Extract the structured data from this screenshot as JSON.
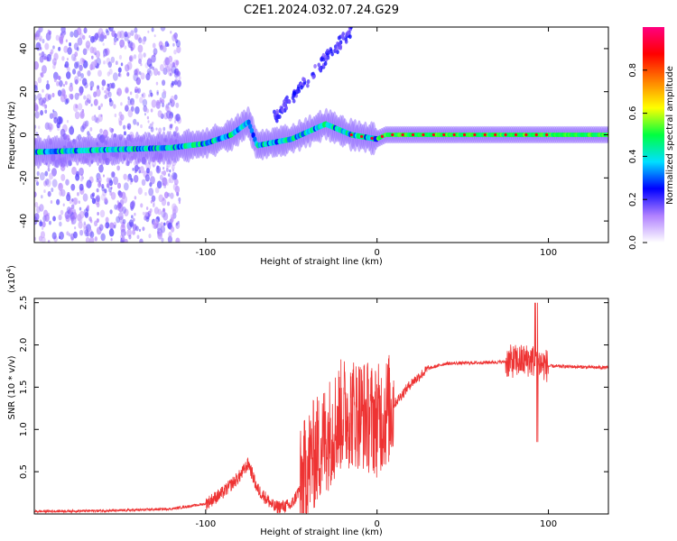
{
  "title": "C2E1.2024.032.07.24.G29",
  "chart_data": [
    {
      "type": "heatmap",
      "xlabel": "Height of straight line (km)",
      "ylabel": "Frequency (Hz)",
      "xlim": [
        -200,
        135
      ],
      "ylim": [
        -50,
        50
      ],
      "xticks": [
        -100,
        0,
        100
      ],
      "yticks": [
        -40,
        -20,
        0,
        20,
        40
      ],
      "colorbar": {
        "label": "Normalized spectral amplitude",
        "range": [
          0,
          1
        ],
        "ticks": [
          0.0,
          0.2,
          0.4,
          0.6,
          0.8
        ],
        "colors": [
          "#ffffff",
          "#b080ff",
          "#0000ff",
          "#00e0ff",
          "#00ff40",
          "#ffff00",
          "#ff8000",
          "#ff0000",
          "#ff0080"
        ]
      },
      "ridge": [
        {
          "x": -200,
          "f": -8
        },
        {
          "x": -160,
          "f": -7
        },
        {
          "x": -120,
          "f": -6
        },
        {
          "x": -100,
          "f": -4
        },
        {
          "x": -85,
          "f": 0
        },
        {
          "x": -75,
          "f": 6
        },
        {
          "x": -70,
          "f": -5
        },
        {
          "x": -50,
          "f": -2
        },
        {
          "x": -30,
          "f": 5
        },
        {
          "x": -15,
          "f": 0
        },
        {
          "x": 0,
          "f": -2
        },
        {
          "x": 5,
          "f": 0
        },
        {
          "x": 135,
          "f": 0
        }
      ]
    },
    {
      "type": "line",
      "xlabel": "Height of straight line (km)",
      "ylabel": "SNR (10 * v/v)",
      "yscale_label": "(x10",
      "yscale_exp": "4",
      "yscale_close": ")",
      "xlim": [
        -200,
        135
      ],
      "ylim": [
        0,
        2.55
      ],
      "xticks": [
        -100,
        0,
        100
      ],
      "yticks": [
        0.5,
        1.0,
        1.5,
        2.0,
        2.5
      ],
      "color": "#ee3333",
      "envelope": [
        {
          "x": -200,
          "y": 0.03
        },
        {
          "x": -150,
          "y": 0.04
        },
        {
          "x": -120,
          "y": 0.06
        },
        {
          "x": -100,
          "y": 0.12
        },
        {
          "x": -90,
          "y": 0.25
        },
        {
          "x": -80,
          "y": 0.45
        },
        {
          "x": -75,
          "y": 0.6
        },
        {
          "x": -70,
          "y": 0.3
        },
        {
          "x": -60,
          "y": 0.08
        },
        {
          "x": -50,
          "y": 0.1
        },
        {
          "x": -45,
          "y": 0.3
        },
        {
          "x": -40,
          "y": 0.6
        },
        {
          "x": -30,
          "y": 0.9
        },
        {
          "x": -20,
          "y": 1.2
        },
        {
          "x": -10,
          "y": 1.2
        },
        {
          "x": 0,
          "y": 1.1
        },
        {
          "x": 10,
          "y": 1.3
        },
        {
          "x": 20,
          "y": 1.55
        },
        {
          "x": 30,
          "y": 1.72
        },
        {
          "x": 40,
          "y": 1.78
        },
        {
          "x": 60,
          "y": 1.79
        },
        {
          "x": 75,
          "y": 1.8
        },
        {
          "x": 90,
          "y": 1.82
        },
        {
          "x": 100,
          "y": 1.75
        },
        {
          "x": 135,
          "y": 1.73
        }
      ]
    }
  ]
}
